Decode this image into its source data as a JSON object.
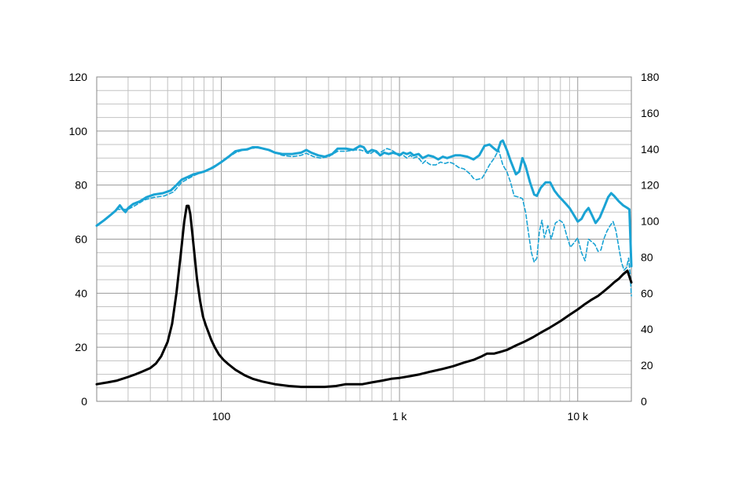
{
  "chart_data": {
    "type": "line",
    "x_scale": "log",
    "xlim": [
      20,
      20000
    ],
    "ylim_left": [
      0,
      120
    ],
    "ylim_right": [
      0,
      180
    ],
    "grid": true,
    "legend": "none",
    "title": "",
    "x_ticks": [
      {
        "value": 100,
        "label": "100"
      },
      {
        "value": 1000,
        "label": "1 k"
      },
      {
        "value": 10000,
        "label": "10 k"
      }
    ],
    "y_ticks_left": [
      {
        "value": 0,
        "label": "0"
      },
      {
        "value": 20,
        "label": "20"
      },
      {
        "value": 40,
        "label": "40"
      },
      {
        "value": 60,
        "label": "60"
      },
      {
        "value": 80,
        "label": "80"
      },
      {
        "value": 100,
        "label": "100"
      },
      {
        "value": 120,
        "label": "120"
      }
    ],
    "y_ticks_right": [
      {
        "value": 0,
        "label": "0"
      },
      {
        "value": 20,
        "label": "20"
      },
      {
        "value": 40,
        "label": "40"
      },
      {
        "value": 60,
        "label": "60"
      },
      {
        "value": 80,
        "label": "80"
      },
      {
        "value": 100,
        "label": "100"
      },
      {
        "value": 120,
        "label": "120"
      },
      {
        "value": 140,
        "label": "140"
      },
      {
        "value": 160,
        "label": "160"
      },
      {
        "value": 180,
        "label": "180"
      }
    ],
    "series": [
      {
        "id": "response-on-axis",
        "axis": "left",
        "color": "#1aa3d4",
        "style": "solid",
        "points": [
          [
            20,
            65
          ],
          [
            22,
            67
          ],
          [
            24,
            69
          ],
          [
            25.5,
            70.5
          ],
          [
            27,
            72.5
          ],
          [
            28,
            71
          ],
          [
            29,
            70
          ],
          [
            30,
            71.5
          ],
          [
            32,
            73
          ],
          [
            35,
            74
          ],
          [
            38,
            75.5
          ],
          [
            42,
            76.5
          ],
          [
            47,
            77
          ],
          [
            52,
            78
          ],
          [
            56,
            80
          ],
          [
            60,
            82
          ],
          [
            65,
            83
          ],
          [
            70,
            84
          ],
          [
            80,
            85
          ],
          [
            90,
            86.5
          ],
          [
            100,
            88.5
          ],
          [
            110,
            90.5
          ],
          [
            120,
            92.5
          ],
          [
            130,
            93
          ],
          [
            140,
            93.2
          ],
          [
            150,
            94
          ],
          [
            160,
            94
          ],
          [
            170,
            93.6
          ],
          [
            185,
            93
          ],
          [
            200,
            92
          ],
          [
            220,
            91.5
          ],
          [
            250,
            91.5
          ],
          [
            280,
            92
          ],
          [
            300,
            93
          ],
          [
            320,
            92
          ],
          [
            350,
            91
          ],
          [
            380,
            90.5
          ],
          [
            420,
            91.5
          ],
          [
            450,
            93.5
          ],
          [
            500,
            93.5
          ],
          [
            550,
            93
          ],
          [
            600,
            94.5
          ],
          [
            630,
            94
          ],
          [
            660,
            92
          ],
          [
            700,
            93
          ],
          [
            740,
            92.5
          ],
          [
            780,
            91
          ],
          [
            820,
            92
          ],
          [
            870,
            91.5
          ],
          [
            920,
            92
          ],
          [
            970,
            91.5
          ],
          [
            1000,
            91
          ],
          [
            1050,
            92
          ],
          [
            1100,
            91.5
          ],
          [
            1150,
            92
          ],
          [
            1200,
            91
          ],
          [
            1280,
            91.5
          ],
          [
            1350,
            90
          ],
          [
            1450,
            91
          ],
          [
            1550,
            90.5
          ],
          [
            1650,
            89.5
          ],
          [
            1750,
            90.5
          ],
          [
            1850,
            90
          ],
          [
            1950,
            90.5
          ],
          [
            2050,
            91
          ],
          [
            2200,
            91
          ],
          [
            2400,
            90.5
          ],
          [
            2600,
            89.5
          ],
          [
            2800,
            91
          ],
          [
            3000,
            94.5
          ],
          [
            3200,
            95
          ],
          [
            3400,
            93.5
          ],
          [
            3550,
            92.5
          ],
          [
            3700,
            96
          ],
          [
            3800,
            96.5
          ],
          [
            4000,
            93
          ],
          [
            4200,
            89
          ],
          [
            4500,
            84
          ],
          [
            4700,
            85
          ],
          [
            4900,
            90
          ],
          [
            5100,
            87
          ],
          [
            5400,
            81
          ],
          [
            5700,
            76.5
          ],
          [
            5900,
            76
          ],
          [
            6200,
            79
          ],
          [
            6600,
            81
          ],
          [
            7000,
            81
          ],
          [
            7400,
            78
          ],
          [
            7800,
            76
          ],
          [
            8200,
            74.5
          ],
          [
            8600,
            73
          ],
          [
            9000,
            71.5
          ],
          [
            9500,
            69
          ],
          [
            10000,
            66.5
          ],
          [
            10500,
            67.5
          ],
          [
            11000,
            70
          ],
          [
            11500,
            71.5
          ],
          [
            12000,
            69
          ],
          [
            12600,
            66
          ],
          [
            13300,
            68
          ],
          [
            14100,
            72
          ],
          [
            14800,
            75.5
          ],
          [
            15400,
            77
          ],
          [
            16000,
            76
          ],
          [
            17000,
            74
          ],
          [
            18000,
            72.5
          ],
          [
            19000,
            71.5
          ],
          [
            19500,
            71
          ],
          [
            20000,
            50
          ]
        ]
      },
      {
        "id": "response-off-axis",
        "axis": "left",
        "color": "#1aa3d4",
        "style": "dashed",
        "points": [
          [
            20,
            65
          ],
          [
            22,
            67
          ],
          [
            24,
            69
          ],
          [
            26,
            71
          ],
          [
            28,
            71
          ],
          [
            30,
            71
          ],
          [
            33,
            72.5
          ],
          [
            37,
            74.5
          ],
          [
            42,
            75.5
          ],
          [
            48,
            76
          ],
          [
            54,
            77.5
          ],
          [
            60,
            81
          ],
          [
            70,
            83.5
          ],
          [
            80,
            85
          ],
          [
            100,
            88.5
          ],
          [
            120,
            92
          ],
          [
            140,
            93.5
          ],
          [
            160,
            93.8
          ],
          [
            180,
            93
          ],
          [
            200,
            92
          ],
          [
            220,
            91
          ],
          [
            250,
            90.5
          ],
          [
            280,
            91
          ],
          [
            300,
            91.8
          ],
          [
            330,
            90.5
          ],
          [
            360,
            90
          ],
          [
            400,
            90.5
          ],
          [
            450,
            92.5
          ],
          [
            500,
            92.5
          ],
          [
            560,
            93
          ],
          [
            600,
            93
          ],
          [
            640,
            92.5
          ],
          [
            680,
            91.5
          ],
          [
            720,
            92.5
          ],
          [
            760,
            91.5
          ],
          [
            800,
            92.5
          ],
          [
            850,
            93.5
          ],
          [
            900,
            93
          ],
          [
            950,
            92
          ],
          [
            1000,
            91.5
          ],
          [
            1050,
            91
          ],
          [
            1100,
            90
          ],
          [
            1150,
            91
          ],
          [
            1200,
            90
          ],
          [
            1250,
            90.5
          ],
          [
            1300,
            89.5
          ],
          [
            1350,
            88
          ],
          [
            1400,
            89
          ],
          [
            1450,
            88
          ],
          [
            1500,
            87.5
          ],
          [
            1600,
            87.5
          ],
          [
            1700,
            88.5
          ],
          [
            1800,
            88
          ],
          [
            1900,
            88.5
          ],
          [
            2000,
            88
          ],
          [
            2150,
            86.5
          ],
          [
            2300,
            86
          ],
          [
            2500,
            84
          ],
          [
            2600,
            82.5
          ],
          [
            2700,
            82
          ],
          [
            2900,
            82.5
          ],
          [
            3000,
            84
          ],
          [
            3200,
            87.5
          ],
          [
            3400,
            90
          ],
          [
            3600,
            93
          ],
          [
            3800,
            87.5
          ],
          [
            4000,
            85
          ],
          [
            4200,
            81
          ],
          [
            4400,
            76
          ],
          [
            4700,
            75.5
          ],
          [
            4900,
            75
          ],
          [
            5100,
            70
          ],
          [
            5300,
            62
          ],
          [
            5500,
            55
          ],
          [
            5700,
            51.5
          ],
          [
            5900,
            53
          ],
          [
            6100,
            63
          ],
          [
            6300,
            67
          ],
          [
            6500,
            60.5
          ],
          [
            6800,
            65
          ],
          [
            7100,
            60
          ],
          [
            7500,
            66
          ],
          [
            7900,
            67
          ],
          [
            8300,
            66
          ],
          [
            8700,
            61
          ],
          [
            9100,
            57
          ],
          [
            9500,
            58.5
          ],
          [
            10000,
            60.5
          ],
          [
            10500,
            55
          ],
          [
            11000,
            52
          ],
          [
            11500,
            60
          ],
          [
            12000,
            59
          ],
          [
            12500,
            58
          ],
          [
            13000,
            55.5
          ],
          [
            13500,
            56
          ],
          [
            14000,
            60
          ],
          [
            14600,
            63
          ],
          [
            15200,
            65
          ],
          [
            15800,
            66.5
          ],
          [
            16400,
            63
          ],
          [
            17000,
            57
          ],
          [
            17600,
            51.5
          ],
          [
            18200,
            48.5
          ],
          [
            18800,
            49.5
          ],
          [
            19300,
            53
          ],
          [
            19700,
            47
          ],
          [
            20000,
            39
          ]
        ]
      },
      {
        "id": "impedance",
        "axis": "right",
        "color": "#000000",
        "style": "solid",
        "points": [
          [
            20,
            9.5
          ],
          [
            23,
            10.5
          ],
          [
            26,
            11.5
          ],
          [
            30,
            13.5
          ],
          [
            33,
            15
          ],
          [
            36,
            16.5
          ],
          [
            40,
            18.5
          ],
          [
            43,
            21
          ],
          [
            46,
            25
          ],
          [
            50,
            33
          ],
          [
            53,
            43
          ],
          [
            56,
            60
          ],
          [
            59,
            80
          ],
          [
            62,
            100
          ],
          [
            64,
            108.5
          ],
          [
            65.5,
            108.5
          ],
          [
            67,
            104
          ],
          [
            69,
            92
          ],
          [
            71,
            80
          ],
          [
            73,
            68
          ],
          [
            76,
            56
          ],
          [
            79,
            47
          ],
          [
            82,
            42
          ],
          [
            85,
            38
          ],
          [
            88,
            34
          ],
          [
            92,
            30
          ],
          [
            97,
            26
          ],
          [
            103,
            23
          ],
          [
            110,
            20.5
          ],
          [
            120,
            17.5
          ],
          [
            135,
            14.5
          ],
          [
            150,
            12.5
          ],
          [
            170,
            11
          ],
          [
            200,
            9.5
          ],
          [
            240,
            8.5
          ],
          [
            280,
            8
          ],
          [
            330,
            8
          ],
          [
            380,
            8
          ],
          [
            440,
            8.5
          ],
          [
            500,
            9.5
          ],
          [
            550,
            9.5
          ],
          [
            620,
            9.5
          ],
          [
            700,
            10.5
          ],
          [
            800,
            11.5
          ],
          [
            900,
            12.5
          ],
          [
            1000,
            13
          ],
          [
            1150,
            14
          ],
          [
            1300,
            15
          ],
          [
            1500,
            16.5
          ],
          [
            1750,
            18
          ],
          [
            2000,
            19.5
          ],
          [
            2300,
            21.5
          ],
          [
            2600,
            23
          ],
          [
            2900,
            25
          ],
          [
            3100,
            26.5
          ],
          [
            3400,
            26.5
          ],
          [
            3700,
            27.5
          ],
          [
            4000,
            28.5
          ],
          [
            4500,
            31
          ],
          [
            5000,
            33
          ],
          [
            5600,
            35.5
          ],
          [
            6300,
            38.5
          ],
          [
            7000,
            41
          ],
          [
            8000,
            44.5
          ],
          [
            9000,
            48
          ],
          [
            10000,
            51
          ],
          [
            11000,
            54
          ],
          [
            12000,
            56.5
          ],
          [
            13000,
            58.5
          ],
          [
            14000,
            61
          ],
          [
            15000,
            63.5
          ],
          [
            16000,
            66
          ],
          [
            17000,
            68
          ],
          [
            18000,
            70.5
          ],
          [
            19000,
            72.5
          ],
          [
            20000,
            66
          ]
        ]
      }
    ]
  }
}
